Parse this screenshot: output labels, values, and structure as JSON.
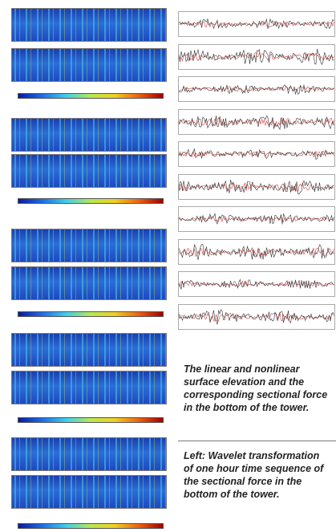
{
  "captions": {
    "right": "The linear and nonlinear surface elevation and the corresponding sectional force in the bottom of the tower.",
    "left": "Left: Wavelet transformation of one hour time sequence of the sectional force in the bottom of the tower."
  }
}
